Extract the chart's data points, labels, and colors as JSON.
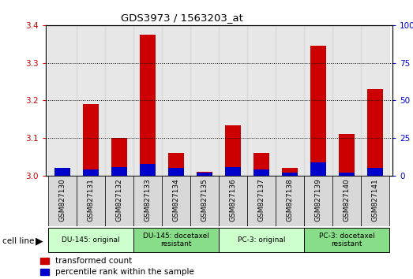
{
  "title": "GDS3973 / 1563203_at",
  "samples": [
    "GSM827130",
    "GSM827131",
    "GSM827132",
    "GSM827133",
    "GSM827134",
    "GSM827135",
    "GSM827136",
    "GSM827137",
    "GSM827138",
    "GSM827139",
    "GSM827140",
    "GSM827141"
  ],
  "red_values": [
    3.02,
    3.19,
    3.1,
    3.375,
    3.06,
    3.01,
    3.135,
    3.06,
    3.02,
    3.345,
    3.11,
    3.23
  ],
  "blue_pct": [
    5,
    4,
    6,
    8,
    5,
    2,
    6,
    4,
    2,
    9,
    2,
    5
  ],
  "ylim_left": [
    3.0,
    3.4
  ],
  "ylim_right": [
    0,
    100
  ],
  "yticks_left": [
    3.0,
    3.1,
    3.2,
    3.3,
    3.4
  ],
  "yticks_right": [
    0,
    25,
    50,
    75,
    100
  ],
  "left_color": "#cc0000",
  "right_color": "#0000cc",
  "cell_groups": [
    {
      "label": "DU-145: original",
      "start": 0,
      "end": 3,
      "color": "#ccffcc"
    },
    {
      "label": "DU-145: docetaxel\nresistant",
      "start": 3,
      "end": 6,
      "color": "#88dd88"
    },
    {
      "label": "PC-3: original",
      "start": 6,
      "end": 9,
      "color": "#ccffcc"
    },
    {
      "label": "PC-3: docetaxel\nresistant",
      "start": 9,
      "end": 12,
      "color": "#88dd88"
    }
  ],
  "legend_items": [
    {
      "color": "#cc0000",
      "label": "transformed count"
    },
    {
      "color": "#0000cc",
      "label": "percentile rank within the sample"
    }
  ],
  "cell_line_label": "cell line"
}
